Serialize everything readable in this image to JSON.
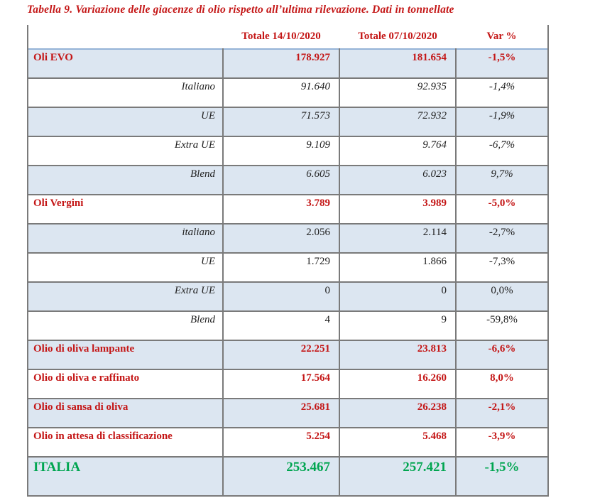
{
  "title": "Tabella 9. Variazione delle giacenze di olio rispetto all’ultima rilevazione. Dati in tonnellate",
  "colors": {
    "title_red": "#c41616",
    "total_green": "#00a550",
    "row_shade_blue": "#dce6f1",
    "grid_border_gray": "#7a7a7a",
    "first_row_top_border_blue": "#95b3d7"
  },
  "chart_data": {
    "type": "table",
    "title": "Tabella 9. Variazione delle giacenze di olio rispetto all’ultima rilevazione. Dati in tonnellate",
    "columns": [
      "",
      "Totale 14/10/2020",
      "Totale 07/10/2020",
      "Var %"
    ],
    "rows": [
      [
        "Oli EVO",
        "178.927",
        "181.654",
        "-1,5%"
      ],
      [
        "Italiano",
        "91.640",
        "92.935",
        "-1,4%"
      ],
      [
        "UE",
        "71.573",
        "72.932",
        "-1,9%"
      ],
      [
        "Extra UE",
        "9.109",
        "9.764",
        "-6,7%"
      ],
      [
        "Blend",
        "6.605",
        "6.023",
        "9,7%"
      ],
      [
        "Oli Vergini",
        "3.789",
        "3.989",
        "-5,0%"
      ],
      [
        "italiano",
        "2.056",
        "2.114",
        "-2,7%"
      ],
      [
        "UE",
        "1.729",
        "1.866",
        "-7,3%"
      ],
      [
        "Extra UE",
        "0",
        "0",
        "0,0%"
      ],
      [
        "Blend",
        "4",
        "9",
        "-59,8%"
      ],
      [
        "Olio di oliva lampante",
        "22.251",
        "23.813",
        "-6,6%"
      ],
      [
        "Olio di oliva e raffinato",
        "17.564",
        "16.260",
        "8,0%"
      ],
      [
        "Olio di sansa di oliva",
        "25.681",
        "26.238",
        "-2,1%"
      ],
      [
        "Olio in attesa di classificazione",
        "5.254",
        "5.468",
        "-3,9%"
      ],
      [
        "ITALIA",
        "253.467",
        "257.421",
        "-1,5%"
      ]
    ]
  },
  "table": {
    "headers": [
      "",
      "Totale 14/10/2020",
      "Totale 07/10/2020",
      "Var %"
    ],
    "rows": [
      {
        "label": "Oli EVO",
        "totale_14_10": "178.927",
        "totale_07_10": "181.654",
        "var": "-1,5%",
        "style": "category",
        "shaded": true
      },
      {
        "label": "Italiano",
        "totale_14_10": "91.640",
        "totale_07_10": "92.935",
        "var": "-1,4%",
        "style": "sub-italic",
        "shaded": false
      },
      {
        "label": "UE",
        "totale_14_10": "71.573",
        "totale_07_10": "72.932",
        "var": "-1,9%",
        "style": "sub-italic",
        "shaded": true
      },
      {
        "label": "Extra UE",
        "totale_14_10": "9.109",
        "totale_07_10": "9.764",
        "var": "-6,7%",
        "style": "sub-italic",
        "shaded": false
      },
      {
        "label": "Blend",
        "totale_14_10": "6.605",
        "totale_07_10": "6.023",
        "var": "9,7%",
        "style": "sub-italic",
        "shaded": true
      },
      {
        "label": "Oli Vergini",
        "totale_14_10": "3.789",
        "totale_07_10": "3.989",
        "var": "-5,0%",
        "style": "category",
        "shaded": false
      },
      {
        "label": "italiano",
        "totale_14_10": "2.056",
        "totale_07_10": "2.114",
        "var": "-2,7%",
        "style": "sub-plain",
        "shaded": true
      },
      {
        "label": "UE",
        "totale_14_10": "1.729",
        "totale_07_10": "1.866",
        "var": "-7,3%",
        "style": "sub-plain",
        "shaded": false
      },
      {
        "label": "Extra UE",
        "totale_14_10": "0",
        "totale_07_10": "0",
        "var": "0,0%",
        "style": "sub-plain",
        "shaded": true
      },
      {
        "label": "Blend",
        "totale_14_10": "4",
        "totale_07_10": "9",
        "var": "-59,8%",
        "style": "sub-plain",
        "shaded": false
      },
      {
        "label": "Olio di oliva lampante",
        "totale_14_10": "22.251",
        "totale_07_10": "23.813",
        "var": "-6,6%",
        "style": "category",
        "shaded": true
      },
      {
        "label": "Olio di oliva e raffinato",
        "totale_14_10": "17.564",
        "totale_07_10": "16.260",
        "var": "8,0%",
        "style": "category",
        "shaded": false
      },
      {
        "label": "Olio di sansa di oliva",
        "totale_14_10": "25.681",
        "totale_07_10": "26.238",
        "var": "-2,1%",
        "style": "category",
        "shaded": true
      },
      {
        "label": "Olio in attesa di classificazione",
        "totale_14_10": "5.254",
        "totale_07_10": "5.468",
        "var": "-3,9%",
        "style": "category",
        "shaded": false
      },
      {
        "label": "ITALIA",
        "totale_14_10": "253.467",
        "totale_07_10": "257.421",
        "var": "-1,5%",
        "style": "total",
        "shaded": true
      }
    ]
  }
}
